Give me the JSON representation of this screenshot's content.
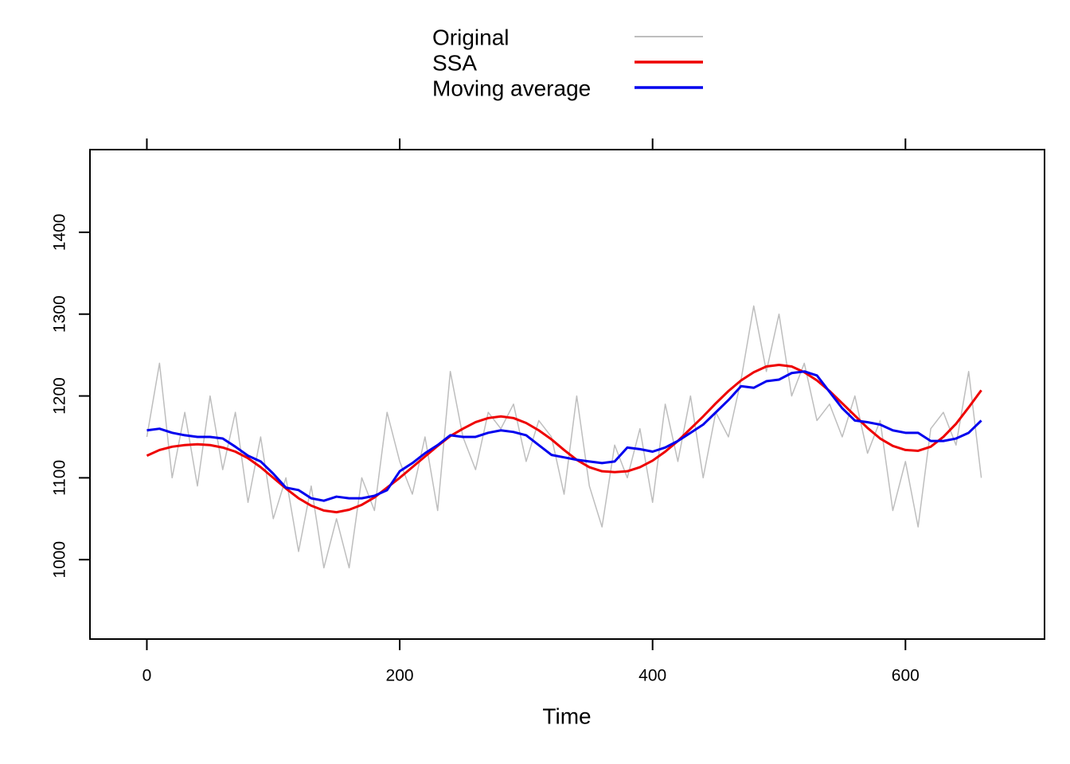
{
  "chart_data": {
    "type": "line",
    "x_label": "Time",
    "legend": "top",
    "grid": false,
    "x": [
      0,
      10,
      20,
      30,
      40,
      50,
      60,
      70,
      80,
      90,
      100,
      110,
      120,
      130,
      140,
      150,
      160,
      170,
      180,
      190,
      200,
      210,
      220,
      230,
      240,
      250,
      260,
      270,
      280,
      290,
      300,
      310,
      320,
      330,
      340,
      350,
      360,
      370,
      380,
      390,
      400,
      410,
      420,
      430,
      440,
      450,
      460,
      470,
      480,
      490,
      500,
      510,
      520,
      530,
      540,
      550,
      560,
      570,
      580,
      590,
      600,
      610,
      620,
      630,
      640,
      650,
      660
    ],
    "xlim": [
      -45,
      710
    ],
    "xticks": [
      0,
      200,
      400,
      600
    ],
    "ylim": [
      903,
      1501
    ],
    "yticks": [
      1000,
      1100,
      1200,
      1300,
      1400
    ],
    "series": [
      {
        "name": "Original",
        "color": "#bebebe",
        "width": 1.5,
        "values": [
          1150,
          1240,
          1100,
          1180,
          1090,
          1200,
          1110,
          1180,
          1070,
          1150,
          1050,
          1100,
          1010,
          1090,
          990,
          1050,
          990,
          1100,
          1060,
          1180,
          1120,
          1080,
          1150,
          1060,
          1230,
          1150,
          1110,
          1180,
          1160,
          1190,
          1120,
          1170,
          1150,
          1080,
          1200,
          1090,
          1040,
          1140,
          1100,
          1160,
          1070,
          1190,
          1120,
          1200,
          1100,
          1180,
          1150,
          1220,
          1310,
          1230,
          1300,
          1200,
          1240,
          1170,
          1190,
          1150,
          1200,
          1130,
          1170,
          1060,
          1120,
          1040,
          1160,
          1180,
          1140,
          1230,
          1100
        ]
      },
      {
        "name": "SSA",
        "color": "#ee0000",
        "width": 3,
        "values": [
          1127,
          1134,
          1138,
          1140,
          1141,
          1140,
          1137,
          1132,
          1124,
          1113,
          1100,
          1087,
          1075,
          1066,
          1060,
          1058,
          1061,
          1067,
          1076,
          1088,
          1100,
          1113,
          1126,
          1139,
          1151,
          1160,
          1168,
          1173,
          1175,
          1173,
          1167,
          1158,
          1147,
          1134,
          1122,
          1113,
          1108,
          1107,
          1108,
          1113,
          1121,
          1132,
          1145,
          1160,
          1175,
          1191,
          1206,
          1219,
          1229,
          1236,
          1238,
          1236,
          1229,
          1219,
          1206,
          1191,
          1176,
          1161,
          1148,
          1139,
          1134,
          1133,
          1138,
          1150,
          1166,
          1186,
          1207
        ]
      },
      {
        "name": "Moving average",
        "color": "#0000ee",
        "width": 3,
        "values": [
          1158,
          1160,
          1155,
          1152,
          1150,
          1150,
          1148,
          1138,
          1127,
          1120,
          1105,
          1088,
          1085,
          1075,
          1072,
          1077,
          1075,
          1075,
          1078,
          1085,
          1108,
          1118,
          1130,
          1140,
          1152,
          1150,
          1150,
          1155,
          1158,
          1156,
          1152,
          1140,
          1128,
          1125,
          1122,
          1120,
          1118,
          1120,
          1137,
          1135,
          1132,
          1137,
          1145,
          1155,
          1165,
          1180,
          1195,
          1212,
          1210,
          1218,
          1220,
          1228,
          1230,
          1225,
          1205,
          1185,
          1170,
          1168,
          1165,
          1158,
          1155,
          1155,
          1145,
          1145,
          1148,
          1155,
          1170
        ]
      }
    ]
  }
}
